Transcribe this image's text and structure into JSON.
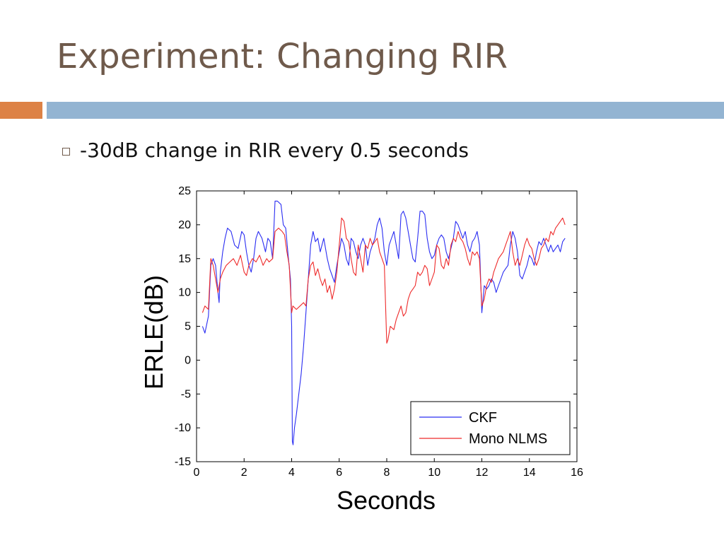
{
  "slide": {
    "title": "Experiment: Changing RIR",
    "bullets": [
      "-30dB change in RIR every 0.5 seconds"
    ]
  },
  "colors": {
    "title": "#6f5a4b",
    "accent_bar": "#dd8246",
    "main_bar": "#93b4d2",
    "ckf": "#2a2df2",
    "nlms": "#ee2a2a"
  },
  "chart_data": {
    "type": "line",
    "title": "",
    "xlabel": "Seconds",
    "ylabel": "ERLE(dB)",
    "xlim": [
      0,
      16
    ],
    "ylim": [
      -15,
      25
    ],
    "xticks": [
      "0",
      "2",
      "4",
      "6",
      "8",
      "10",
      "12",
      "14",
      "16"
    ],
    "yticks": [
      "25",
      "20",
      "15",
      "10",
      "5",
      "0",
      "-5",
      "-10",
      "-15"
    ],
    "legend": "bottom-right",
    "grid": false,
    "series": [
      {
        "name": "CKF",
        "color": "#2a2df2",
        "points": [
          [
            0.25,
            5
          ],
          [
            0.35,
            4
          ],
          [
            0.5,
            6.5
          ],
          [
            0.6,
            14
          ],
          [
            0.7,
            15
          ],
          [
            0.8,
            14
          ],
          [
            0.9,
            10
          ],
          [
            0.95,
            8.5
          ],
          [
            1.0,
            13
          ],
          [
            1.1,
            16
          ],
          [
            1.2,
            18
          ],
          [
            1.3,
            19.5
          ],
          [
            1.45,
            19
          ],
          [
            1.6,
            17
          ],
          [
            1.75,
            16.5
          ],
          [
            1.9,
            19
          ],
          [
            2.0,
            18.5
          ],
          [
            2.1,
            16
          ],
          [
            2.2,
            14
          ],
          [
            2.3,
            13
          ],
          [
            2.4,
            15
          ],
          [
            2.5,
            18
          ],
          [
            2.6,
            19
          ],
          [
            2.75,
            18
          ],
          [
            2.9,
            16
          ],
          [
            3.0,
            18
          ],
          [
            3.1,
            17.5
          ],
          [
            3.2,
            15
          ],
          [
            3.3,
            23.5
          ],
          [
            3.4,
            23.5
          ],
          [
            3.55,
            23
          ],
          [
            3.65,
            20
          ],
          [
            3.75,
            19.5
          ],
          [
            3.85,
            15.5
          ],
          [
            3.95,
            12
          ],
          [
            4.0,
            5
          ],
          [
            4.03,
            -12
          ],
          [
            4.06,
            -12.5
          ],
          [
            4.12,
            -10
          ],
          [
            4.2,
            -8
          ],
          [
            4.3,
            -5
          ],
          [
            4.4,
            -2
          ],
          [
            4.5,
            2
          ],
          [
            4.6,
            7
          ],
          [
            4.7,
            12
          ],
          [
            4.8,
            17
          ],
          [
            4.9,
            19
          ],
          [
            5.0,
            17.5
          ],
          [
            5.1,
            18
          ],
          [
            5.2,
            16
          ],
          [
            5.35,
            18
          ],
          [
            5.5,
            15
          ],
          [
            5.6,
            13.5
          ],
          [
            5.7,
            12.5
          ],
          [
            5.8,
            11.5
          ],
          [
            5.9,
            14
          ],
          [
            6.0,
            16
          ],
          [
            6.1,
            18
          ],
          [
            6.2,
            17
          ],
          [
            6.3,
            15
          ],
          [
            6.4,
            14
          ],
          [
            6.5,
            18
          ],
          [
            6.6,
            17.5
          ],
          [
            6.7,
            16
          ],
          [
            6.8,
            15
          ],
          [
            6.9,
            17
          ],
          [
            7.0,
            18
          ],
          [
            7.1,
            17
          ],
          [
            7.2,
            14
          ],
          [
            7.3,
            16
          ],
          [
            7.4,
            17
          ],
          [
            7.5,
            18
          ],
          [
            7.6,
            20
          ],
          [
            7.7,
            21
          ],
          [
            7.8,
            19.5
          ],
          [
            7.9,
            16
          ],
          [
            8.0,
            14
          ],
          [
            8.1,
            17
          ],
          [
            8.2,
            18
          ],
          [
            8.3,
            19
          ],
          [
            8.4,
            17
          ],
          [
            8.5,
            15
          ],
          [
            8.6,
            21.5
          ],
          [
            8.7,
            22
          ],
          [
            8.8,
            21
          ],
          [
            8.9,
            19
          ],
          [
            9.0,
            17
          ],
          [
            9.1,
            15
          ],
          [
            9.2,
            14.5
          ],
          [
            9.3,
            18
          ],
          [
            9.4,
            22
          ],
          [
            9.5,
            22
          ],
          [
            9.6,
            21.5
          ],
          [
            9.7,
            18
          ],
          [
            9.8,
            16
          ],
          [
            9.9,
            15
          ],
          [
            10.0,
            15.5
          ],
          [
            10.1,
            17
          ],
          [
            10.2,
            18
          ],
          [
            10.3,
            18.5
          ],
          [
            10.4,
            18
          ],
          [
            10.5,
            16
          ],
          [
            10.6,
            15
          ],
          [
            10.7,
            16.5
          ],
          [
            10.8,
            18
          ],
          [
            10.9,
            20.5
          ],
          [
            11.0,
            20
          ],
          [
            11.1,
            19
          ],
          [
            11.2,
            18
          ],
          [
            11.3,
            19
          ],
          [
            11.4,
            17
          ],
          [
            11.5,
            16
          ],
          [
            11.6,
            17.5
          ],
          [
            11.7,
            18
          ],
          [
            11.8,
            19
          ],
          [
            11.9,
            17
          ],
          [
            12.0,
            7
          ],
          [
            12.1,
            11
          ],
          [
            12.2,
            10.5
          ],
          [
            12.3,
            11
          ],
          [
            12.4,
            12
          ],
          [
            12.5,
            11.5
          ],
          [
            12.6,
            10
          ],
          [
            12.7,
            11
          ],
          [
            12.8,
            12
          ],
          [
            12.9,
            13
          ],
          [
            13.0,
            13.5
          ],
          [
            13.1,
            14
          ],
          [
            13.2,
            17
          ],
          [
            13.3,
            19
          ],
          [
            13.4,
            18
          ],
          [
            13.5,
            16
          ],
          [
            13.6,
            12.5
          ],
          [
            13.7,
            12
          ],
          [
            13.8,
            13
          ],
          [
            13.9,
            14
          ],
          [
            14.0,
            15.5
          ],
          [
            14.1,
            15
          ],
          [
            14.2,
            14
          ],
          [
            14.3,
            16
          ],
          [
            14.4,
            17.5
          ],
          [
            14.5,
            17
          ],
          [
            14.6,
            18
          ],
          [
            14.7,
            17
          ],
          [
            14.8,
            16
          ],
          [
            14.9,
            17
          ],
          [
            15.0,
            16
          ],
          [
            15.1,
            16.5
          ],
          [
            15.2,
            17
          ],
          [
            15.3,
            16
          ],
          [
            15.4,
            17.5
          ],
          [
            15.5,
            18
          ]
        ]
      },
      {
        "name": "Mono NLMS",
        "color": "#ee2a2a",
        "points": [
          [
            0.25,
            7
          ],
          [
            0.35,
            8
          ],
          [
            0.5,
            7.5
          ],
          [
            0.6,
            15
          ],
          [
            0.7,
            14
          ],
          [
            0.8,
            12
          ],
          [
            0.9,
            10
          ],
          [
            1.0,
            12
          ],
          [
            1.1,
            13
          ],
          [
            1.25,
            14
          ],
          [
            1.4,
            14.5
          ],
          [
            1.55,
            15
          ],
          [
            1.7,
            14
          ],
          [
            1.85,
            15.5
          ],
          [
            2.0,
            13
          ],
          [
            2.1,
            12.5
          ],
          [
            2.2,
            14
          ],
          [
            2.35,
            15
          ],
          [
            2.5,
            14.5
          ],
          [
            2.65,
            15.5
          ],
          [
            2.8,
            14
          ],
          [
            2.95,
            15
          ],
          [
            3.05,
            14.5
          ],
          [
            3.2,
            15
          ],
          [
            3.3,
            19
          ],
          [
            3.45,
            19.5
          ],
          [
            3.6,
            19
          ],
          [
            3.7,
            18.5
          ],
          [
            3.8,
            16
          ],
          [
            3.9,
            14
          ],
          [
            4.0,
            7
          ],
          [
            4.05,
            8
          ],
          [
            4.2,
            7.5
          ],
          [
            4.35,
            8
          ],
          [
            4.5,
            8.5
          ],
          [
            4.6,
            8
          ],
          [
            4.7,
            12
          ],
          [
            4.8,
            14
          ],
          [
            4.9,
            14.5
          ],
          [
            5.0,
            12.5
          ],
          [
            5.1,
            13.5
          ],
          [
            5.2,
            12
          ],
          [
            5.3,
            11
          ],
          [
            5.4,
            12
          ],
          [
            5.5,
            10
          ],
          [
            5.6,
            11
          ],
          [
            5.7,
            9
          ],
          [
            5.8,
            10.5
          ],
          [
            5.9,
            13
          ],
          [
            6.0,
            17
          ],
          [
            6.1,
            21
          ],
          [
            6.2,
            20.5
          ],
          [
            6.3,
            18
          ],
          [
            6.4,
            17.5
          ],
          [
            6.5,
            15
          ],
          [
            6.6,
            13
          ],
          [
            6.7,
            12.5
          ],
          [
            6.8,
            17
          ],
          [
            6.9,
            15
          ],
          [
            7.0,
            13
          ],
          [
            7.1,
            17
          ],
          [
            7.2,
            16.5
          ],
          [
            7.3,
            18
          ],
          [
            7.4,
            17
          ],
          [
            7.5,
            17.5
          ],
          [
            7.6,
            18
          ],
          [
            7.7,
            16
          ],
          [
            7.8,
            15
          ],
          [
            7.9,
            14
          ],
          [
            8.0,
            2.5
          ],
          [
            8.05,
            3
          ],
          [
            8.15,
            5
          ],
          [
            8.3,
            4.5
          ],
          [
            8.4,
            6
          ],
          [
            8.5,
            7
          ],
          [
            8.6,
            8
          ],
          [
            8.7,
            6.5
          ],
          [
            8.8,
            7
          ],
          [
            8.9,
            9
          ],
          [
            9.0,
            10
          ],
          [
            9.1,
            10.5
          ],
          [
            9.2,
            11
          ],
          [
            9.3,
            13
          ],
          [
            9.4,
            12.5
          ],
          [
            9.5,
            13
          ],
          [
            9.6,
            14
          ],
          [
            9.7,
            13.5
          ],
          [
            9.8,
            11
          ],
          [
            9.9,
            12
          ],
          [
            10.0,
            13
          ],
          [
            10.1,
            17
          ],
          [
            10.2,
            16.5
          ],
          [
            10.3,
            14
          ],
          [
            10.4,
            13.5
          ],
          [
            10.5,
            15
          ],
          [
            10.6,
            14
          ],
          [
            10.7,
            17
          ],
          [
            10.8,
            18
          ],
          [
            10.9,
            17.5
          ],
          [
            11.0,
            19
          ],
          [
            11.1,
            18
          ],
          [
            11.2,
            17.5
          ],
          [
            11.3,
            16.5
          ],
          [
            11.4,
            15
          ],
          [
            11.5,
            14
          ],
          [
            11.6,
            16
          ],
          [
            11.7,
            15.5
          ],
          [
            11.8,
            16
          ],
          [
            11.9,
            15
          ],
          [
            12.0,
            8
          ],
          [
            12.1,
            9
          ],
          [
            12.2,
            11
          ],
          [
            12.3,
            12
          ],
          [
            12.4,
            11.5
          ],
          [
            12.5,
            13
          ],
          [
            12.6,
            14
          ],
          [
            12.7,
            15
          ],
          [
            12.8,
            15.5
          ],
          [
            12.9,
            16
          ],
          [
            13.0,
            17
          ],
          [
            13.1,
            18
          ],
          [
            13.2,
            19
          ],
          [
            13.3,
            16
          ],
          [
            13.4,
            14
          ],
          [
            13.5,
            15
          ],
          [
            13.6,
            14
          ],
          [
            13.7,
            15.5
          ],
          [
            13.8,
            17
          ],
          [
            13.9,
            18
          ],
          [
            14.0,
            17
          ],
          [
            14.1,
            16.5
          ],
          [
            14.2,
            15
          ],
          [
            14.3,
            14
          ],
          [
            14.4,
            15
          ],
          [
            14.5,
            16.5
          ],
          [
            14.6,
            17
          ],
          [
            14.7,
            18
          ],
          [
            14.8,
            17.5
          ],
          [
            14.9,
            19
          ],
          [
            15.0,
            18.5
          ],
          [
            15.1,
            19.5
          ],
          [
            15.2,
            20
          ],
          [
            15.3,
            20.5
          ],
          [
            15.4,
            21
          ],
          [
            15.5,
            20
          ]
        ]
      }
    ]
  }
}
